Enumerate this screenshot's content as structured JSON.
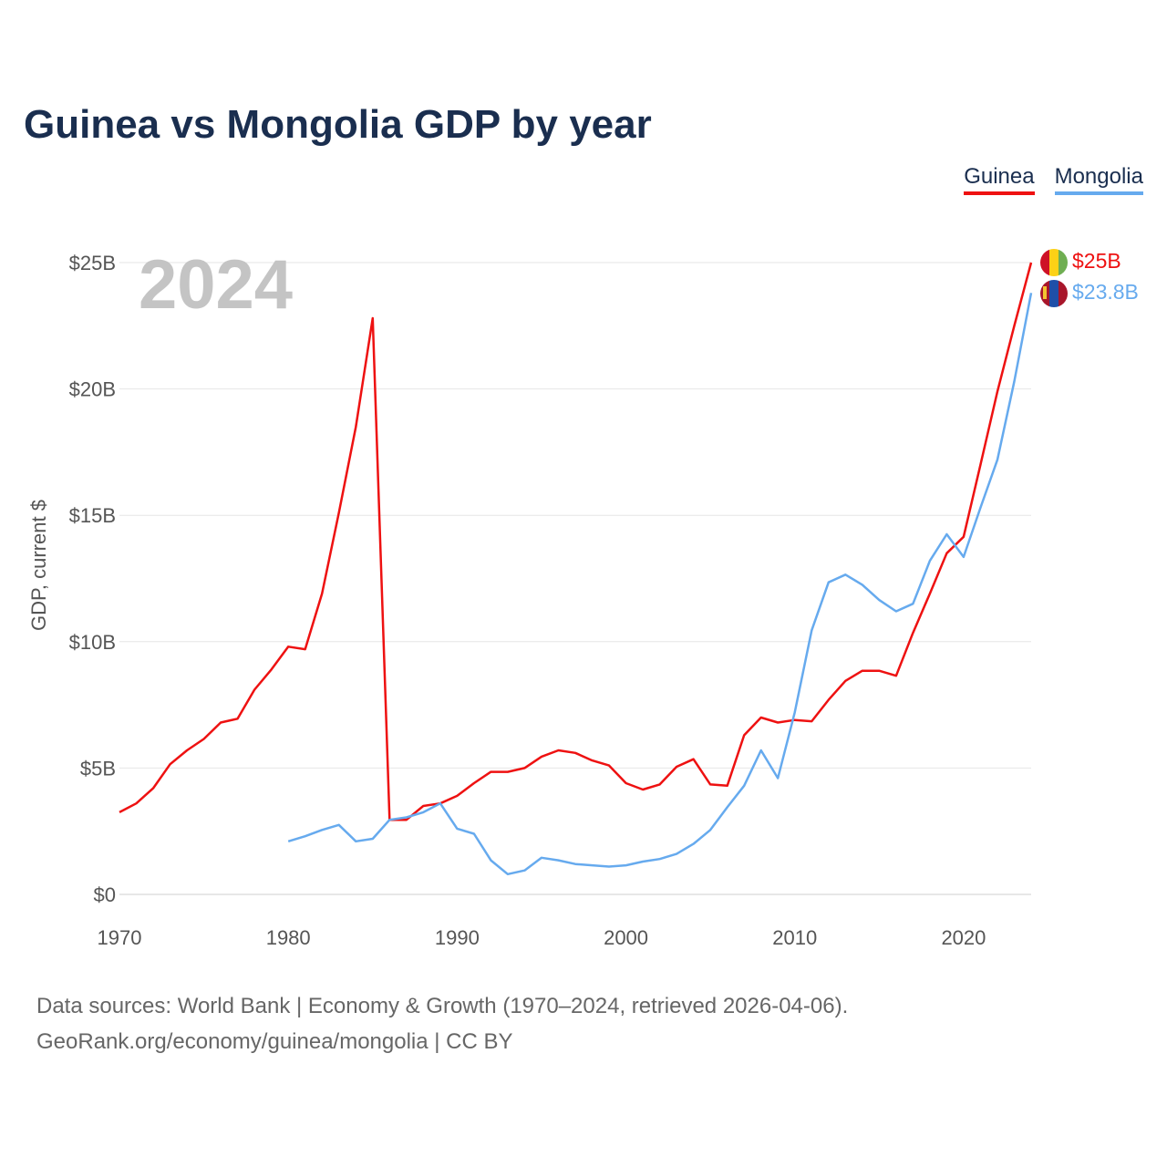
{
  "header": {
    "title": "Guinea vs Mongolia GDP by year"
  },
  "legend": [
    {
      "name": "Guinea",
      "color": "#ee1111"
    },
    {
      "name": "Mongolia",
      "color": "#66aaee"
    }
  ],
  "footer": {
    "line1": "Data sources: World Bank | Economy & Growth (1970–2024, retrieved 2026-04-06).",
    "line2": "GeoRank.org/economy/guinea/mongolia | CC BY"
  },
  "chart_data": {
    "type": "line",
    "title": "Guinea vs Mongolia GDP by year",
    "xlabel": "",
    "ylabel": "GDP, current $",
    "xlim": [
      1970,
      2024
    ],
    "ylim": [
      0,
      25
    ],
    "year_display": "2024",
    "x_ticks": [
      {
        "value": 1970,
        "label": "1970"
      },
      {
        "value": 1980,
        "label": "1980"
      },
      {
        "value": 1990,
        "label": "1990"
      },
      {
        "value": 2000,
        "label": "2000"
      },
      {
        "value": 2010,
        "label": "2010"
      },
      {
        "value": 2020,
        "label": "2020"
      }
    ],
    "y_ticks": [
      {
        "value": 0,
        "label": "$0"
      },
      {
        "value": 5,
        "label": "$5B"
      },
      {
        "value": 10,
        "label": "$10B"
      },
      {
        "value": 15,
        "label": "$15B"
      },
      {
        "value": 20,
        "label": "$20B"
      },
      {
        "value": 25,
        "label": "$25B"
      }
    ],
    "series": [
      {
        "name": "Guinea",
        "color": "#ee1111",
        "end_label": "$25B",
        "x": [
          1970,
          1971,
          1972,
          1973,
          1974,
          1975,
          1976,
          1977,
          1978,
          1979,
          1980,
          1981,
          1982,
          1983,
          1984,
          1985,
          1986,
          1987,
          1988,
          1989,
          1990,
          1991,
          1992,
          1993,
          1994,
          1995,
          1996,
          1997,
          1998,
          1999,
          2000,
          2001,
          2002,
          2003,
          2004,
          2005,
          2006,
          2007,
          2008,
          2009,
          2010,
          2011,
          2012,
          2013,
          2014,
          2015,
          2016,
          2017,
          2018,
          2019,
          2020,
          2021,
          2022,
          2023,
          2024
        ],
        "values": [
          3.25,
          3.6,
          4.2,
          5.15,
          5.7,
          6.15,
          6.8,
          6.95,
          8.1,
          8.9,
          9.8,
          9.7,
          11.9,
          15.1,
          18.5,
          22.8,
          2.95,
          2.95,
          3.5,
          3.6,
          3.9,
          4.4,
          4.85,
          4.85,
          5.0,
          5.45,
          5.7,
          5.6,
          5.3,
          5.1,
          4.4,
          4.15,
          4.35,
          5.05,
          5.35,
          4.35,
          4.3,
          6.3,
          7.0,
          6.8,
          6.9,
          6.85,
          7.7,
          8.45,
          8.85,
          8.85,
          8.65,
          10.35,
          11.9,
          13.5,
          14.15,
          17.0,
          19.9,
          22.5,
          25.0
        ]
      },
      {
        "name": "Mongolia",
        "color": "#66aaee",
        "end_label": "$23.8B",
        "x": [
          1980,
          1981,
          1982,
          1983,
          1984,
          1985,
          1986,
          1987,
          1988,
          1989,
          1990,
          1991,
          1992,
          1993,
          1994,
          1995,
          1996,
          1997,
          1998,
          1999,
          2000,
          2001,
          2002,
          2003,
          2004,
          2005,
          2006,
          2007,
          2008,
          2009,
          2010,
          2011,
          2012,
          2013,
          2014,
          2015,
          2016,
          2017,
          2018,
          2019,
          2020,
          2021,
          2022,
          2023,
          2024
        ],
        "values": [
          2.1,
          2.3,
          2.55,
          2.75,
          2.1,
          2.2,
          2.95,
          3.05,
          3.25,
          3.6,
          2.6,
          2.4,
          1.35,
          0.8,
          0.95,
          1.45,
          1.35,
          1.2,
          1.15,
          1.1,
          1.15,
          1.3,
          1.4,
          1.6,
          2.0,
          2.55,
          3.45,
          4.3,
          5.7,
          4.6,
          7.2,
          10.45,
          12.35,
          12.65,
          12.25,
          11.65,
          11.2,
          11.5,
          13.2,
          14.25,
          13.35,
          15.3,
          17.2,
          20.3,
          23.8
        ]
      }
    ]
  }
}
